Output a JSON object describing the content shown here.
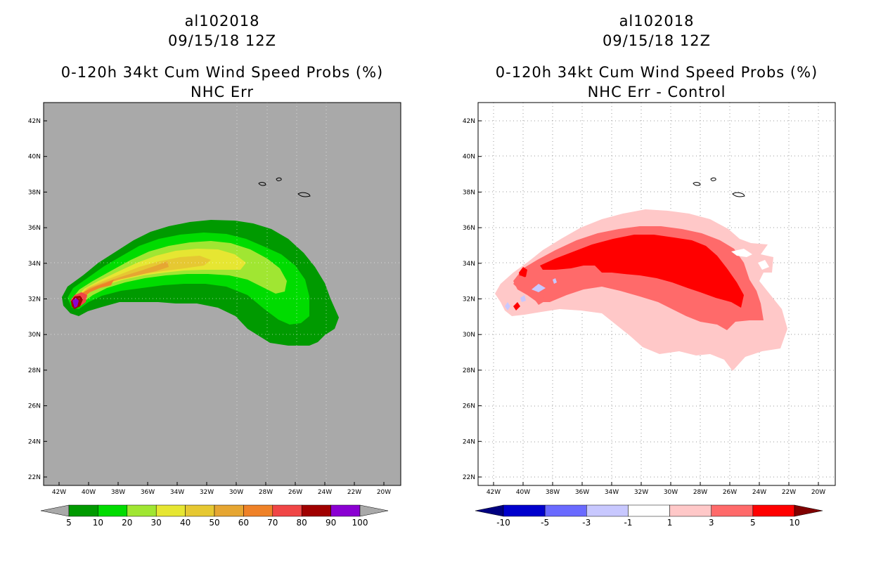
{
  "left_panel": {
    "storm_id": "al102018",
    "datetime": "09/15/18 12Z",
    "product": "0-120h 34kt Cum Wind Speed Probs (%)",
    "subtitle": "NHC Err",
    "colorbar": {
      "labels": [
        "5",
        "10",
        "20",
        "30",
        "40",
        "50",
        "60",
        "70",
        "80",
        "90",
        "100"
      ],
      "colors": [
        "#009a00",
        "#00dc00",
        "#a0e632",
        "#e6e632",
        "#e6c832",
        "#e6a632",
        "#ef8228",
        "#f04646",
        "#a00000",
        "#8a00d2"
      ],
      "under_color": "#a9a9a9",
      "over_color": "#a9a9a9"
    }
  },
  "right_panel": {
    "storm_id": "al102018",
    "datetime": "09/15/18 12Z",
    "product": "0-120h 34kt Cum Wind Speed Probs (%)",
    "subtitle": "NHC Err - Control",
    "colorbar": {
      "labels": [
        "-10",
        "-5",
        "-3",
        "-1",
        "1",
        "3",
        "5",
        "10"
      ],
      "colors": [
        "#0000cd",
        "#6a6aff",
        "#c8c8ff",
        "#ffffff",
        "#ffc8c8",
        "#ff6a6a",
        "#ff0000"
      ],
      "under_color": "#000080",
      "over_color": "#800000"
    }
  },
  "map_axes": {
    "lat_labels": [
      "42N",
      "40N",
      "38N",
      "36N",
      "34N",
      "32N",
      "30N",
      "28N",
      "26N",
      "24N",
      "22N"
    ],
    "lon_labels": [
      "42W",
      "40W",
      "38W",
      "36W",
      "34W",
      "32W",
      "30W",
      "28W",
      "26W",
      "24W",
      "22W",
      "20W"
    ]
  }
}
